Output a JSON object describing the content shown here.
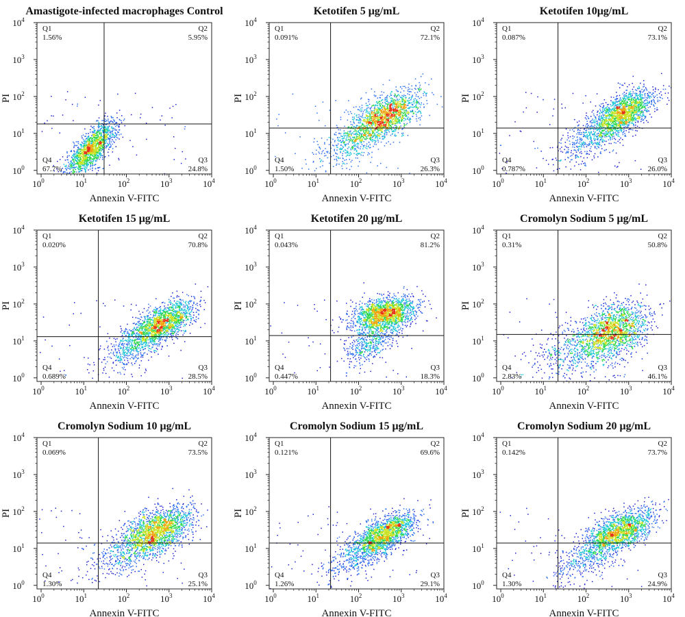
{
  "colors": {
    "frame": "#222222",
    "gate": "#111111",
    "density_scale": [
      "#1a1ad6",
      "#2a6df4",
      "#19c6d8",
      "#2fd84a",
      "#c9e21f",
      "#f2a20f",
      "#e6321c"
    ]
  },
  "chart_data": [
    {
      "type": "scatter",
      "title": "Amastigote-infected macrophages Control",
      "xlabel": "Annexin V-FITC",
      "ylabel": "PI",
      "xscale": "log",
      "yscale": "log",
      "xlim": [
        0.8,
        10000
      ],
      "ylim": [
        0.8,
        10000
      ],
      "xticks": [
        "10",
        "10",
        "10",
        "10",
        "10"
      ],
      "xtick_exponents": [
        "0",
        "1",
        "2",
        "3",
        "4"
      ],
      "yticks": [
        "10",
        "10",
        "10",
        "10",
        "10"
      ],
      "ytick_exponents": [
        "0",
        "1",
        "2",
        "3",
        "4"
      ],
      "gate": {
        "x": 30,
        "y": 18
      },
      "quadrants": [
        {
          "name": "Q1",
          "percent": "1.56%"
        },
        {
          "name": "Q2",
          "percent": "5.95%"
        },
        {
          "name": "Q3",
          "percent": "24.8%"
        },
        {
          "name": "Q4",
          "percent": "67.7%"
        }
      ],
      "populations": [
        {
          "x": 15,
          "y": 4,
          "sx": 0.3,
          "sy": 0.38,
          "corr": 0.75,
          "n": 1500
        }
      ]
    },
    {
      "type": "scatter",
      "title": "Ketotifen 5 μg/mL",
      "xlabel": "Annexin V-FITC",
      "ylabel": "PI",
      "xscale": "log",
      "yscale": "log",
      "xlim": [
        0.8,
        10000
      ],
      "ylim": [
        0.8,
        10000
      ],
      "xticks": [
        "10",
        "10",
        "10",
        "10",
        "10"
      ],
      "xtick_exponents": [
        "0",
        "1",
        "2",
        "3",
        "4"
      ],
      "yticks": [
        "10",
        "10",
        "10",
        "10",
        "10"
      ],
      "ytick_exponents": [
        "0",
        "1",
        "2",
        "3",
        "4"
      ],
      "gate": {
        "x": 22,
        "y": 14
      },
      "quadrants": [
        {
          "name": "Q1",
          "percent": "0.091%"
        },
        {
          "name": "Q2",
          "percent": "72.1%"
        },
        {
          "name": "Q3",
          "percent": "26.3%"
        },
        {
          "name": "Q4",
          "percent": "1.50%"
        }
      ],
      "populations": [
        {
          "x": 400,
          "y": 28,
          "sx": 0.42,
          "sy": 0.35,
          "corr": 0.6,
          "n": 1600
        },
        {
          "x": 60,
          "y": 6,
          "sx": 0.4,
          "sy": 0.35,
          "corr": 0.6,
          "n": 350
        }
      ]
    },
    {
      "type": "scatter",
      "title": "Ketotifen 10μg/mL",
      "xlabel": "Annexin V-FITC",
      "ylabel": "PI",
      "xscale": "log",
      "yscale": "log",
      "xlim": [
        0.8,
        10000
      ],
      "ylim": [
        0.8,
        10000
      ],
      "xticks": [
        "10",
        "10",
        "10",
        "10",
        "10"
      ],
      "xtick_exponents": [
        "0",
        "1",
        "2",
        "3",
        "4"
      ],
      "yticks": [
        "10",
        "10",
        "10",
        "10",
        "10"
      ],
      "ytick_exponents": [
        "0",
        "1",
        "2",
        "3",
        "4"
      ],
      "gate": {
        "x": 22,
        "y": 14
      },
      "quadrants": [
        {
          "name": "Q1",
          "percent": "0.087%"
        },
        {
          "name": "Q2",
          "percent": "73.1%"
        },
        {
          "name": "Q3",
          "percent": "26.0%"
        },
        {
          "name": "Q4",
          "percent": "0.787%"
        }
      ],
      "populations": [
        {
          "x": 700,
          "y": 35,
          "sx": 0.38,
          "sy": 0.33,
          "corr": 0.6,
          "n": 1600
        },
        {
          "x": 120,
          "y": 7,
          "sx": 0.4,
          "sy": 0.35,
          "corr": 0.6,
          "n": 400
        }
      ]
    },
    {
      "type": "scatter",
      "title": "Ketotifen 15 μg/mL",
      "xlabel": "Annexin V-FITC",
      "ylabel": "PI",
      "xscale": "log",
      "yscale": "log",
      "xlim": [
        0.8,
        10000
      ],
      "ylim": [
        0.8,
        10000
      ],
      "xticks": [
        "10",
        "10",
        "10",
        "10",
        "10"
      ],
      "xtick_exponents": [
        "0",
        "1",
        "2",
        "3",
        "4"
      ],
      "yticks": [
        "10",
        "10",
        "10",
        "10",
        "10"
      ],
      "ytick_exponents": [
        "0",
        "1",
        "2",
        "3",
        "4"
      ],
      "gate": {
        "x": 22,
        "y": 13
      },
      "quadrants": [
        {
          "name": "Q1",
          "percent": "0.020%"
        },
        {
          "name": "Q2",
          "percent": "70.8%"
        },
        {
          "name": "Q3",
          "percent": "28.5%"
        },
        {
          "name": "Q4",
          "percent": "0.689%"
        }
      ],
      "populations": [
        {
          "x": 700,
          "y": 32,
          "sx": 0.36,
          "sy": 0.3,
          "corr": 0.6,
          "n": 1500
        },
        {
          "x": 150,
          "y": 8,
          "sx": 0.38,
          "sy": 0.33,
          "corr": 0.6,
          "n": 500
        }
      ]
    },
    {
      "type": "scatter",
      "title": "Ketotifen 20 μg/mL",
      "xlabel": "Annexin V-FITC",
      "ylabel": "PI",
      "xscale": "log",
      "yscale": "log",
      "xlim": [
        0.8,
        10000
      ],
      "ylim": [
        0.8,
        10000
      ],
      "xticks": [
        "10",
        "10",
        "10",
        "10",
        "10"
      ],
      "xtick_exponents": [
        "0",
        "1",
        "2",
        "3",
        "4"
      ],
      "yticks": [
        "10",
        "10",
        "10",
        "10",
        "10"
      ],
      "ytick_exponents": [
        "0",
        "1",
        "2",
        "3",
        "4"
      ],
      "gate": {
        "x": 22,
        "y": 14
      },
      "quadrants": [
        {
          "name": "Q1",
          "percent": "0.043%"
        },
        {
          "name": "Q2",
          "percent": "81.2%"
        },
        {
          "name": "Q3",
          "percent": "18.3%"
        },
        {
          "name": "Q4",
          "percent": "0.447%"
        }
      ],
      "populations": [
        {
          "x": 400,
          "y": 55,
          "sx": 0.36,
          "sy": 0.22,
          "corr": 0.3,
          "n": 1700
        },
        {
          "x": 200,
          "y": 10,
          "sx": 0.32,
          "sy": 0.3,
          "corr": 0.5,
          "n": 450
        }
      ]
    },
    {
      "type": "scatter",
      "title": "Cromolyn Sodium 5 μg/mL",
      "xlabel": "Annexin V-FITC",
      "ylabel": "PI",
      "xscale": "log",
      "yscale": "log",
      "xlim": [
        0.8,
        10000
      ],
      "ylim": [
        0.8,
        10000
      ],
      "xticks": [
        "10",
        "10",
        "10",
        "10",
        "10"
      ],
      "xtick_exponents": [
        "0",
        "1",
        "2",
        "3",
        "4"
      ],
      "yticks": [
        "10",
        "10",
        "10",
        "10",
        "10"
      ],
      "ytick_exponents": [
        "0",
        "1",
        "2",
        "3",
        "4"
      ],
      "gate": {
        "x": 22,
        "y": 15
      },
      "quadrants": [
        {
          "name": "Q1",
          "percent": "0.31%"
        },
        {
          "name": "Q2",
          "percent": "50.8%"
        },
        {
          "name": "Q3",
          "percent": "46.1%"
        },
        {
          "name": "Q4",
          "percent": "2.83%"
        }
      ],
      "populations": [
        {
          "x": 400,
          "y": 18,
          "sx": 0.42,
          "sy": 0.4,
          "corr": 0.4,
          "n": 1700
        },
        {
          "x": 40,
          "y": 5,
          "sx": 0.45,
          "sy": 0.35,
          "corr": 0.4,
          "n": 350
        }
      ]
    },
    {
      "type": "scatter",
      "title": "Cromolyn Sodium 10 μg/mL",
      "xlabel": "Annexin V-FITC",
      "ylabel": "PI",
      "xscale": "log",
      "yscale": "log",
      "xlim": [
        0.8,
        10000
      ],
      "ylim": [
        0.8,
        10000
      ],
      "xticks": [
        "10",
        "10",
        "10",
        "10",
        "10"
      ],
      "xtick_exponents": [
        "0",
        "1",
        "2",
        "3",
        "4"
      ],
      "yticks": [
        "10",
        "10",
        "10",
        "10",
        "10"
      ],
      "ytick_exponents": [
        "0",
        "1",
        "2",
        "3",
        "4"
      ],
      "gate": {
        "x": 22,
        "y": 14
      },
      "quadrants": [
        {
          "name": "Q1",
          "percent": "0.069%"
        },
        {
          "name": "Q2",
          "percent": "73.5%"
        },
        {
          "name": "Q3",
          "percent": "25.1%"
        },
        {
          "name": "Q4",
          "percent": "1.30%"
        }
      ],
      "populations": [
        {
          "x": 500,
          "y": 30,
          "sx": 0.42,
          "sy": 0.33,
          "corr": 0.5,
          "n": 1700
        },
        {
          "x": 80,
          "y": 7,
          "sx": 0.42,
          "sy": 0.35,
          "corr": 0.5,
          "n": 350
        }
      ]
    },
    {
      "type": "scatter",
      "title": "Cromolyn Sodium 15 μg/mL",
      "xlabel": "Annexin V-FITC",
      "ylabel": "PI",
      "xscale": "log",
      "yscale": "log",
      "xlim": [
        0.8,
        10000
      ],
      "ylim": [
        0.8,
        10000
      ],
      "xticks": [
        "10",
        "10",
        "10",
        "10",
        "10"
      ],
      "xtick_exponents": [
        "0",
        "1",
        "2",
        "3",
        "4"
      ],
      "yticks": [
        "10",
        "10",
        "10",
        "10",
        "10"
      ],
      "ytick_exponents": [
        "0",
        "1",
        "2",
        "3",
        "4"
      ],
      "gate": {
        "x": 22,
        "y": 14
      },
      "quadrants": [
        {
          "name": "Q1",
          "percent": "0.121%"
        },
        {
          "name": "Q2",
          "percent": "69.6%"
        },
        {
          "name": "Q3",
          "percent": "29.1%"
        },
        {
          "name": "Q4",
          "percent": "1.26%"
        }
      ],
      "populations": [
        {
          "x": 400,
          "y": 25,
          "sx": 0.36,
          "sy": 0.3,
          "corr": 0.6,
          "n": 1600
        },
        {
          "x": 80,
          "y": 6,
          "sx": 0.42,
          "sy": 0.35,
          "corr": 0.6,
          "n": 350
        }
      ]
    },
    {
      "type": "scatter",
      "title": "Cromolyn Sodium 20 μg/mL",
      "xlabel": "Annexin V-FITC",
      "ylabel": "PI",
      "xscale": "log",
      "yscale": "log",
      "xlim": [
        0.8,
        10000
      ],
      "ylim": [
        0.8,
        10000
      ],
      "xticks": [
        "10",
        "10",
        "10",
        "10",
        "10"
      ],
      "xtick_exponents": [
        "0",
        "1",
        "2",
        "3",
        "4"
      ],
      "yticks": [
        "10",
        "10",
        "10",
        "10",
        "10"
      ],
      "ytick_exponents": [
        "0",
        "1",
        "2",
        "3",
        "4"
      ],
      "gate": {
        "x": 22,
        "y": 14
      },
      "quadrants": [
        {
          "name": "Q1",
          "percent": "0.142%"
        },
        {
          "name": "Q2",
          "percent": "73.7%"
        },
        {
          "name": "Q3",
          "percent": "24.9%"
        },
        {
          "name": "Q4",
          "percent": "1.30%"
        }
      ],
      "populations": [
        {
          "x": 600,
          "y": 30,
          "sx": 0.4,
          "sy": 0.3,
          "corr": 0.6,
          "n": 1600
        },
        {
          "x": 100,
          "y": 6,
          "sx": 0.42,
          "sy": 0.35,
          "corr": 0.6,
          "n": 380
        }
      ]
    }
  ]
}
